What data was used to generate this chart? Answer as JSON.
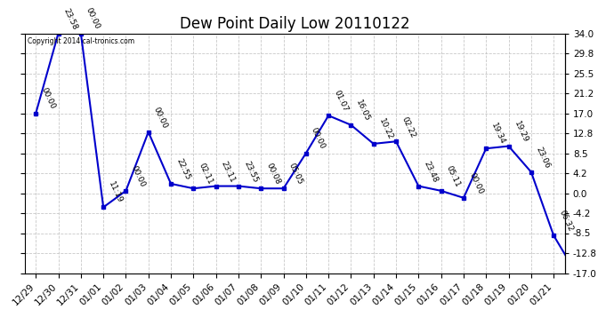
{
  "title": "Dew Point Daily Low 20110122",
  "copyright": "Copyright 2014 cal-tronics.com",
  "x_labels": [
    "12/29",
    "12/30",
    "12/31",
    "01/01",
    "01/02",
    "01/03",
    "01/04",
    "01/05",
    "01/06",
    "01/07",
    "01/08",
    "01/09",
    "01/10",
    "01/11",
    "01/12",
    "01/13",
    "01/14",
    "01/15",
    "01/16",
    "01/17",
    "01/18",
    "01/19",
    "01/20",
    "01/21"
  ],
  "points": [
    [
      0,
      17.0,
      "00:00"
    ],
    [
      1,
      34.0,
      "23:58"
    ],
    [
      2,
      34.0,
      "00:00"
    ],
    [
      3,
      -3.0,
      "11:19"
    ],
    [
      4,
      0.5,
      "00:00"
    ],
    [
      5,
      13.0,
      "00:00"
    ],
    [
      6,
      2.0,
      "22:55"
    ],
    [
      7,
      1.0,
      "02:11"
    ],
    [
      8,
      1.5,
      "23:11"
    ],
    [
      9,
      1.5,
      "23:55"
    ],
    [
      10,
      1.0,
      "00:08"
    ],
    [
      11,
      1.0,
      "05:05"
    ],
    [
      12,
      8.5,
      "00:00"
    ],
    [
      13,
      16.5,
      "01:07"
    ],
    [
      14,
      14.5,
      "16:05"
    ],
    [
      15,
      10.5,
      "10:22"
    ],
    [
      16,
      11.0,
      "02:22"
    ],
    [
      17,
      1.5,
      "23:48"
    ],
    [
      18,
      0.5,
      "05:11"
    ],
    [
      19,
      -1.0,
      "00:00"
    ],
    [
      20,
      9.5,
      "19:34"
    ],
    [
      21,
      10.0,
      "19:29"
    ],
    [
      22,
      4.5,
      "23:06"
    ],
    [
      23,
      -9.0,
      "06:32"
    ],
    [
      24,
      -17.0,
      ""
    ]
  ],
  "ylim": [
    -17.0,
    34.0
  ],
  "yticks": [
    -17.0,
    -12.8,
    -8.5,
    -4.2,
    0.0,
    4.2,
    8.5,
    12.8,
    17.0,
    21.2,
    25.5,
    29.8,
    34.0
  ],
  "line_color": "#0000cc",
  "marker_color": "#0000cc",
  "bg_color": "#ffffff",
  "grid_color": "#bbbbbb",
  "title_fontsize": 12,
  "annot_fontsize": 6.5,
  "tick_fontsize": 7.5
}
